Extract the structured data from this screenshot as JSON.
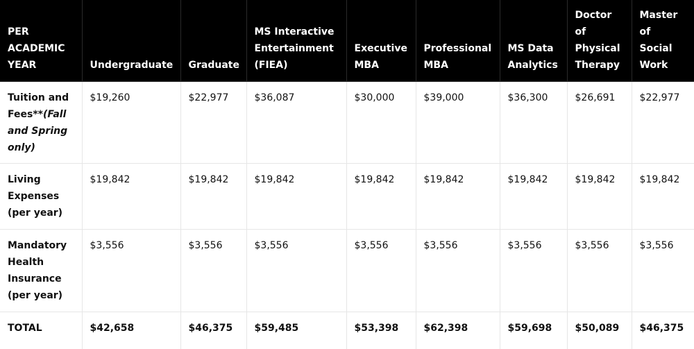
{
  "table": {
    "headers": [
      "PER ACADEMIC YEAR",
      "Undergraduate",
      "Graduate",
      "MS Interactive Entertainment (FIEA)",
      "Executive MBA",
      "Professional MBA",
      "MS Data Analytics",
      "Doctor of Physical Therapy",
      "Master of Social Work"
    ],
    "rows": [
      {
        "label": "Tuition and Fees**",
        "label_note": "(Fall and Spring only)",
        "values": [
          "$19,260",
          "$22,977",
          "$36,087",
          "$30,000",
          "$39,000",
          "$36,300",
          "$26,691",
          "$22,977"
        ]
      },
      {
        "label": "Living Expenses (per year)",
        "values": [
          "$19,842",
          "$19,842",
          "$19,842",
          "$19,842",
          "$19,842",
          "$19,842",
          "$19,842",
          "$19,842"
        ]
      },
      {
        "label": "Mandatory Health Insurance (per year)",
        "values": [
          "$3,556",
          "$3,556",
          "$3,556",
          "$3,556",
          "$3,556",
          "$3,556",
          "$3,556",
          "$3,556"
        ]
      },
      {
        "label": "TOTAL",
        "values": [
          "$42,658",
          "$46,375",
          "$59,485",
          "$53,398",
          "$62,398",
          "$59,698",
          "$50,089",
          "$46,375"
        ]
      }
    ]
  }
}
